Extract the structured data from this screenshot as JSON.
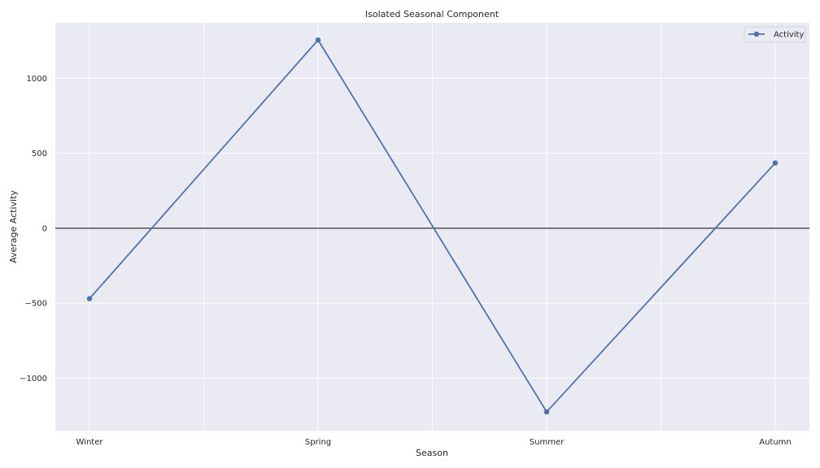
{
  "chart_data": {
    "type": "line",
    "title": "Isolated Seasonal Component",
    "xlabel": "Season",
    "ylabel": "Average Activity",
    "categories": [
      "Winter",
      "Spring",
      "Summer",
      "Autumn"
    ],
    "series": [
      {
        "name": "Activity",
        "values": [
          -470,
          1255,
          -1225,
          435
        ],
        "color": "#4c72b0"
      }
    ],
    "ylim": [
      -1350,
      1370
    ],
    "yticks": [
      -1000,
      -500,
      0,
      500,
      1000
    ],
    "ytick_labels": [
      "−1000",
      "−500",
      "0",
      "500",
      "1000"
    ],
    "reference_line": {
      "y": 0,
      "color": "#333333"
    },
    "grid": true,
    "legend": {
      "position": "top-right"
    },
    "background": "#eaeaf2"
  }
}
